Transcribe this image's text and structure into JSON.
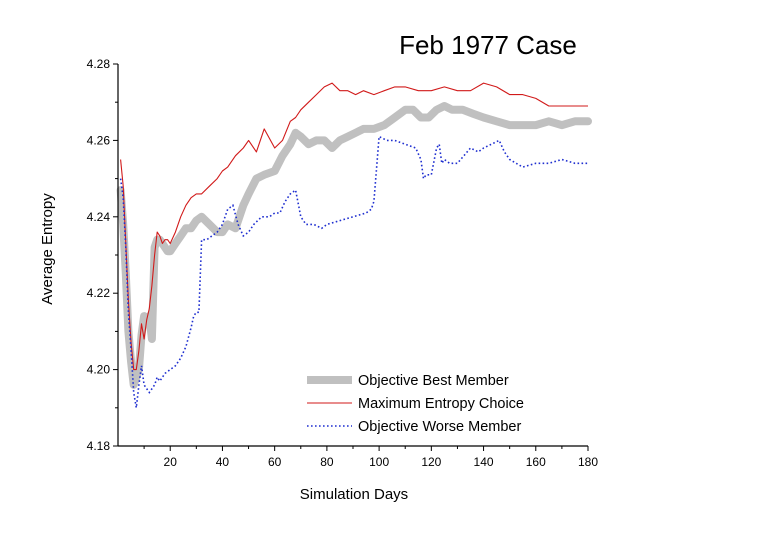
{
  "chart_data": {
    "type": "line",
    "title": "Feb 1977 Case",
    "xlabel": "Simulation Days",
    "ylabel": "Average Entropy",
    "xlim": [
      0,
      180
    ],
    "ylim": [
      4.18,
      4.28
    ],
    "xticks": [
      20,
      40,
      60,
      80,
      100,
      120,
      140,
      160,
      180
    ],
    "xtick_labels": [
      "20",
      "40",
      "60",
      "80",
      "100",
      "120",
      "140",
      "160",
      "180"
    ],
    "yticks": [
      4.18,
      4.2,
      4.22,
      4.24,
      4.26,
      4.28
    ],
    "ytick_labels": [
      "4.18",
      "4.20",
      "4.22",
      "4.24",
      "4.26",
      "4.28"
    ],
    "grid": false,
    "legend_position": "bottom-right",
    "series": [
      {
        "name": "Objective Best Member",
        "color": "#c0c0c0",
        "style": "thick-solid",
        "x": [
          1,
          2,
          3,
          4,
          5,
          6,
          7,
          8,
          9,
          10,
          11,
          12,
          13,
          14,
          15,
          16,
          17,
          18,
          19,
          20,
          22,
          24,
          26,
          28,
          30,
          32,
          35,
          38,
          40,
          42,
          45,
          48,
          50,
          53,
          56,
          60,
          63,
          66,
          68,
          70,
          73,
          76,
          79,
          82,
          85,
          88,
          91,
          94,
          98,
          102,
          106,
          110,
          113,
          116,
          119,
          122,
          125,
          128,
          132,
          136,
          140,
          145,
          150,
          155,
          160,
          165,
          170,
          175,
          180
        ],
        "y": [
          4.247,
          4.238,
          4.225,
          4.21,
          4.202,
          4.196,
          4.198,
          4.2,
          4.209,
          4.214,
          4.212,
          4.214,
          4.208,
          4.232,
          4.234,
          4.234,
          4.233,
          4.232,
          4.231,
          4.231,
          4.233,
          4.235,
          4.237,
          4.237,
          4.239,
          4.24,
          4.238,
          4.236,
          4.236,
          4.238,
          4.237,
          4.243,
          4.246,
          4.25,
          4.251,
          4.252,
          4.256,
          4.259,
          4.262,
          4.261,
          4.259,
          4.26,
          4.26,
          4.258,
          4.26,
          4.261,
          4.262,
          4.263,
          4.263,
          4.264,
          4.266,
          4.268,
          4.268,
          4.266,
          4.266,
          4.268,
          4.269,
          4.268,
          4.268,
          4.267,
          4.266,
          4.265,
          4.264,
          4.264,
          4.264,
          4.265,
          4.264,
          4.265,
          4.265
        ]
      },
      {
        "name": "Maximum Entropy Choice",
        "color": "#d11a1a",
        "style": "thin-solid",
        "x": [
          1,
          2,
          3,
          4,
          5,
          6,
          7,
          8,
          9,
          10,
          11,
          12,
          13,
          14,
          15,
          16,
          17,
          18,
          19,
          20,
          22,
          24,
          26,
          28,
          30,
          32,
          35,
          38,
          40,
          42,
          45,
          48,
          50,
          53,
          56,
          60,
          63,
          66,
          68,
          70,
          73,
          76,
          79,
          82,
          85,
          88,
          91,
          94,
          98,
          102,
          106,
          110,
          115,
          120,
          125,
          130,
          135,
          140,
          145,
          150,
          155,
          160,
          165,
          170,
          175,
          180
        ],
        "y": [
          4.255,
          4.248,
          4.233,
          4.218,
          4.207,
          4.2,
          4.2,
          4.205,
          4.212,
          4.208,
          4.213,
          4.216,
          4.222,
          4.23,
          4.236,
          4.235,
          4.233,
          4.234,
          4.234,
          4.233,
          4.236,
          4.24,
          4.243,
          4.245,
          4.246,
          4.246,
          4.248,
          4.25,
          4.252,
          4.253,
          4.256,
          4.258,
          4.26,
          4.257,
          4.263,
          4.258,
          4.26,
          4.265,
          4.266,
          4.268,
          4.27,
          4.272,
          4.274,
          4.275,
          4.273,
          4.273,
          4.272,
          4.273,
          4.272,
          4.273,
          4.274,
          4.274,
          4.273,
          4.273,
          4.274,
          4.273,
          4.273,
          4.275,
          4.274,
          4.272,
          4.272,
          4.271,
          4.269,
          4.269,
          4.269,
          4.269
        ]
      },
      {
        "name": "Objective Worse Member",
        "color": "#1f2fd0",
        "style": "dotted",
        "x": [
          1,
          2,
          3,
          4,
          5,
          6,
          7,
          8,
          9,
          10,
          12,
          14,
          15,
          16,
          18,
          20,
          22,
          24,
          26,
          28,
          29,
          30,
          31,
          32,
          34,
          36,
          38,
          40,
          42,
          44,
          46,
          48,
          50,
          52,
          55,
          58,
          60,
          62,
          64,
          66,
          68,
          70,
          72,
          75,
          78,
          80,
          85,
          90,
          95,
          97,
          98,
          100,
          103,
          106,
          110,
          114,
          116,
          117,
          118,
          120,
          122,
          123,
          124,
          125,
          127,
          130,
          135,
          138,
          140,
          143,
          146,
          148,
          150,
          155,
          160,
          165,
          170,
          175,
          180
        ],
        "y": [
          4.25,
          4.245,
          4.232,
          4.215,
          4.205,
          4.194,
          4.19,
          4.196,
          4.201,
          4.196,
          4.194,
          4.196,
          4.198,
          4.197,
          4.199,
          4.2,
          4.201,
          4.203,
          4.206,
          4.211,
          4.214,
          4.215,
          4.215,
          4.234,
          4.234,
          4.235,
          4.236,
          4.238,
          4.242,
          4.243,
          4.238,
          4.235,
          4.236,
          4.238,
          4.24,
          4.24,
          4.241,
          4.241,
          4.244,
          4.246,
          4.247,
          4.24,
          4.238,
          4.238,
          4.237,
          4.238,
          4.239,
          4.24,
          4.241,
          4.242,
          4.244,
          4.261,
          4.26,
          4.26,
          4.259,
          4.258,
          4.255,
          4.25,
          4.251,
          4.251,
          4.258,
          4.259,
          4.254,
          4.255,
          4.254,
          4.254,
          4.258,
          4.257,
          4.258,
          4.259,
          4.26,
          4.257,
          4.255,
          4.253,
          4.254,
          4.254,
          4.255,
          4.254,
          4.254
        ]
      }
    ]
  }
}
